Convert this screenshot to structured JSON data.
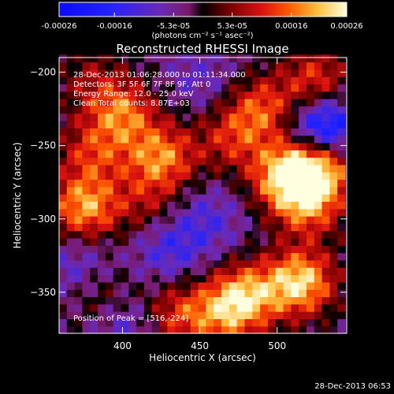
{
  "chart_data": {
    "type": "heatmap",
    "title": "Reconstructed RHESSI Image",
    "xlabel": "Heliocentric X (arcsec)",
    "ylabel": "Heliocentric Y (arcsec)",
    "xlim": [
      359,
      545
    ],
    "ylim": [
      -378,
      -190
    ],
    "xticks": [
      400,
      450,
      500
    ],
    "yticks": [
      -200,
      -250,
      -300,
      -350
    ],
    "colorbar": {
      "range": [
        -0.00026,
        0.00026
      ],
      "tick_values": [
        -0.00026,
        -0.00016,
        -5.3e-05,
        5.3e-05,
        0.00016,
        0.00026
      ],
      "tick_labels": [
        "-0.00026",
        "-0.00016",
        "-5.3e-05",
        "5.3e-05",
        "0.00016",
        "0.00026"
      ],
      "units": "(photons cm⁻² s⁻¹ asec⁻²)"
    },
    "annotations": [
      "28-Dec-2013 01:06:28.000 to 01:11:34.000",
      "Detectors: 3F 5F 6F 7F 8F 9F, Att 0",
      "Energy Range: 12.0 - 25.0 keV",
      "Clean    Total counts: 8.87E+03"
    ],
    "peak_label": "Position of Peak = [516,-224]",
    "peak": [
      516,
      -224
    ],
    "timestamp": "28-Dec-2013 06:53",
    "intensity_centers": [
      {
        "x": 400,
        "y": -228,
        "value": 0.00018
      },
      {
        "x": 380,
        "y": -255,
        "value": 0.00013
      },
      {
        "x": 425,
        "y": -258,
        "value": 0.0002
      },
      {
        "x": 375,
        "y": -292,
        "value": 0.00022
      },
      {
        "x": 415,
        "y": -290,
        "value": 9e-05
      },
      {
        "x": 470,
        "y": -245,
        "value": 0.00012
      },
      {
        "x": 490,
        "y": -225,
        "value": 0.00016
      },
      {
        "x": 506,
        "y": -270,
        "value": 0.00024
      },
      {
        "x": 528,
        "y": -262,
        "value": 0.00025
      },
      {
        "x": 520,
        "y": -290,
        "value": 0.00018
      },
      {
        "x": 515,
        "y": -343,
        "value": 0.00026
      },
      {
        "x": 480,
        "y": -352,
        "value": 0.0002
      },
      {
        "x": 465,
        "y": -365,
        "value": 0.00015
      },
      {
        "x": 435,
        "y": -365,
        "value": 0.00014
      },
      {
        "x": 390,
        "y": -358,
        "value": 0.0001
      },
      {
        "x": 380,
        "y": -205,
        "value": 8e-05
      },
      {
        "x": 525,
        "y": -205,
        "value": 0.00015
      },
      {
        "x": 530,
        "y": -240,
        "value": -0.00026
      },
      {
        "x": 430,
        "y": -320,
        "value": -0.0001
      },
      {
        "x": 455,
        "y": -300,
        "value": -8e-05
      },
      {
        "x": 450,
        "y": -205,
        "value": -6e-05
      },
      {
        "x": 370,
        "y": -330,
        "value": -7e-05
      },
      {
        "x": 400,
        "y": -370,
        "value": -0.00012
      }
    ]
  }
}
